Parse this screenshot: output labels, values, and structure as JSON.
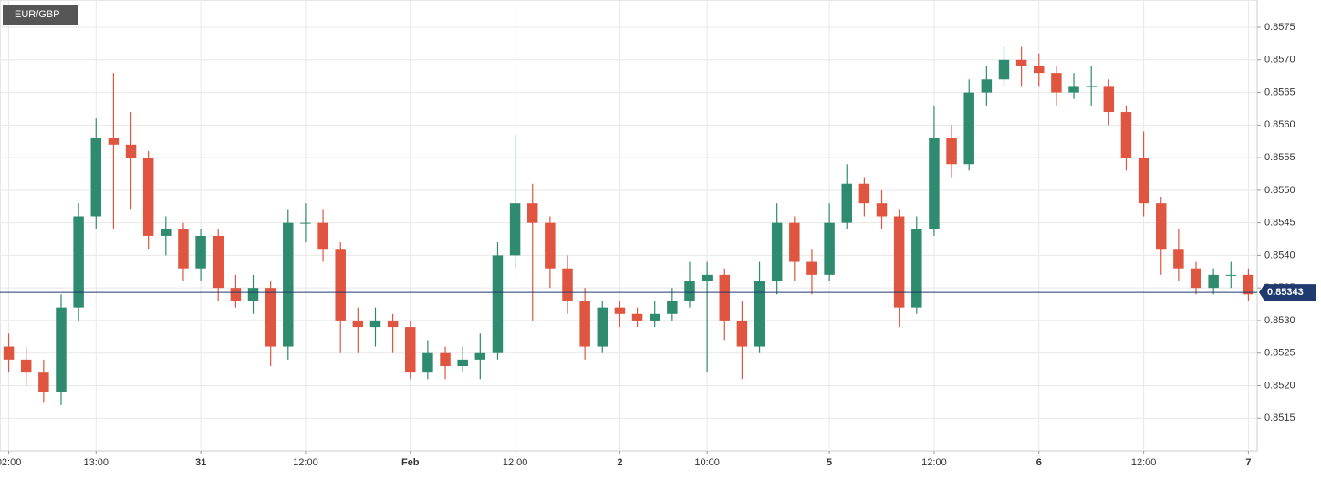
{
  "chart_data": {
    "type": "candlestick",
    "title": "EUR/GBP",
    "categories": [
      "02:00",
      null,
      null,
      null,
      null,
      "13:00",
      null,
      null,
      null,
      null,
      null,
      "31",
      null,
      null,
      null,
      null,
      null,
      "12:00",
      null,
      null,
      null,
      null,
      null,
      "Feb",
      null,
      null,
      null,
      null,
      null,
      "12:00",
      null,
      null,
      null,
      null,
      null,
      "2",
      null,
      null,
      null,
      null,
      "10:00",
      null,
      null,
      null,
      null,
      null,
      null,
      "5",
      null,
      null,
      null,
      null,
      null,
      "12:00",
      null,
      null,
      null,
      null,
      null,
      "6",
      null,
      null,
      null,
      null,
      null,
      "12:00",
      null,
      null,
      null,
      null,
      null,
      "7"
    ],
    "open": [
      0.8526,
      0.8524,
      0.8522,
      0.8519,
      0.8532,
      0.8546,
      0.8558,
      0.8557,
      0.8555,
      0.8543,
      0.8544,
      0.8538,
      0.8543,
      0.8535,
      0.8533,
      0.8535,
      0.8526,
      0.8545,
      0.8545,
      0.8541,
      0.853,
      0.8529,
      0.853,
      0.8529,
      0.8522,
      0.8525,
      0.8523,
      0.8524,
      0.8525,
      0.854,
      0.8548,
      0.8545,
      0.8538,
      0.8533,
      0.8526,
      0.8532,
      0.8531,
      0.853,
      0.8531,
      0.8533,
      0.8536,
      0.8537,
      0.853,
      0.8526,
      0.8536,
      0.8545,
      0.8539,
      0.8537,
      0.8545,
      0.8551,
      0.8548,
      0.8546,
      0.8532,
      0.8544,
      0.8558,
      0.8554,
      0.8565,
      0.8567,
      0.857,
      0.8569,
      0.8568,
      0.8565,
      0.8566,
      0.8566,
      0.8562,
      0.8555,
      0.8548,
      0.8541,
      0.8538,
      0.8535,
      0.8537,
      0.8537
    ],
    "high": [
      0.8528,
      0.8526,
      0.8524,
      0.8534,
      0.8548,
      0.8561,
      0.8568,
      0.8562,
      0.8556,
      0.8546,
      0.8545,
      0.8544,
      0.8544,
      0.8537,
      0.8537,
      0.8536,
      0.8547,
      0.8548,
      0.8547,
      0.8542,
      0.8532,
      0.8532,
      0.8531,
      0.853,
      0.8527,
      0.8526,
      0.8526,
      0.8528,
      0.8542,
      0.85585,
      0.8551,
      0.8546,
      0.854,
      0.8535,
      0.8533,
      0.8533,
      0.8532,
      0.8533,
      0.8535,
      0.8539,
      0.8539,
      0.8538,
      0.8533,
      0.8539,
      0.8548,
      0.8546,
      0.8541,
      0.8548,
      0.8554,
      0.8552,
      0.855,
      0.8547,
      0.8546,
      0.8563,
      0.856,
      0.8567,
      0.8569,
      0.8572,
      0.8572,
      0.8571,
      0.8569,
      0.8568,
      0.8569,
      0.8567,
      0.8563,
      0.8559,
      0.8549,
      0.8544,
      0.8539,
      0.8538,
      0.8539,
      0.8538
    ],
    "low": [
      0.8522,
      0.852,
      0.85175,
      0.8517,
      0.853,
      0.8544,
      0.8544,
      0.8547,
      0.8541,
      0.854,
      0.8536,
      0.8536,
      0.8533,
      0.8532,
      0.8531,
      0.8523,
      0.8524,
      0.8542,
      0.8539,
      0.8525,
      0.8525,
      0.8526,
      0.8525,
      0.8521,
      0.8521,
      0.8521,
      0.8522,
      0.8521,
      0.8524,
      0.8538,
      0.853,
      0.8535,
      0.8531,
      0.8524,
      0.8525,
      0.8529,
      0.8529,
      0.8529,
      0.853,
      0.8532,
      0.8522,
      0.8527,
      0.8521,
      0.8525,
      0.8534,
      0.8536,
      0.8534,
      0.8536,
      0.8544,
      0.8546,
      0.8544,
      0.8529,
      0.8531,
      0.8543,
      0.8552,
      0.8553,
      0.8563,
      0.8566,
      0.8566,
      0.8566,
      0.8563,
      0.8564,
      0.8563,
      0.856,
      0.8553,
      0.8546,
      0.8537,
      0.8536,
      0.8534,
      0.8534,
      0.8535,
      0.8533
    ],
    "close": [
      0.8524,
      0.8522,
      0.8519,
      0.8532,
      0.8546,
      0.8558,
      0.8557,
      0.8555,
      0.8543,
      0.8544,
      0.8538,
      0.8543,
      0.8535,
      0.8533,
      0.8535,
      0.8526,
      0.8545,
      0.8545,
      0.8541,
      0.853,
      0.8529,
      0.853,
      0.8529,
      0.8522,
      0.8525,
      0.8523,
      0.8524,
      0.8525,
      0.854,
      0.8548,
      0.8545,
      0.8538,
      0.8533,
      0.8526,
      0.8532,
      0.8531,
      0.853,
      0.8531,
      0.8533,
      0.8536,
      0.8537,
      0.853,
      0.8526,
      0.8536,
      0.8545,
      0.8539,
      0.8537,
      0.8545,
      0.8551,
      0.8548,
      0.8546,
      0.8532,
      0.8544,
      0.8558,
      0.8554,
      0.8565,
      0.8567,
      0.857,
      0.8569,
      0.8568,
      0.8565,
      0.8566,
      0.8566,
      0.8562,
      0.8555,
      0.8548,
      0.8541,
      0.8538,
      0.8535,
      0.8537,
      0.8537,
      0.8534
    ],
    "up_color": "#2e8b6f",
    "down_color": "#e0553f",
    "last_price": 0.85343,
    "last_price_color": "#1e3a6e",
    "ylim": [
      0.851,
      0.85792
    ],
    "yticks": [
      0.8515,
      {
        "value": 0.852,
        "label": "0.8520"
      },
      0.8525,
      {
        "value": 0.853,
        "label": "0.8530"
      },
      0.8535,
      {
        "value": 0.854,
        "label": "0.8540"
      },
      0.8545,
      {
        "value": 0.855,
        "label": "0.8550"
      },
      0.8555,
      {
        "value": 0.856,
        "label": "0.8560"
      },
      0.8565,
      {
        "value": 0.857,
        "label": "0.8570"
      },
      0.8575
    ],
    "grid": true
  }
}
